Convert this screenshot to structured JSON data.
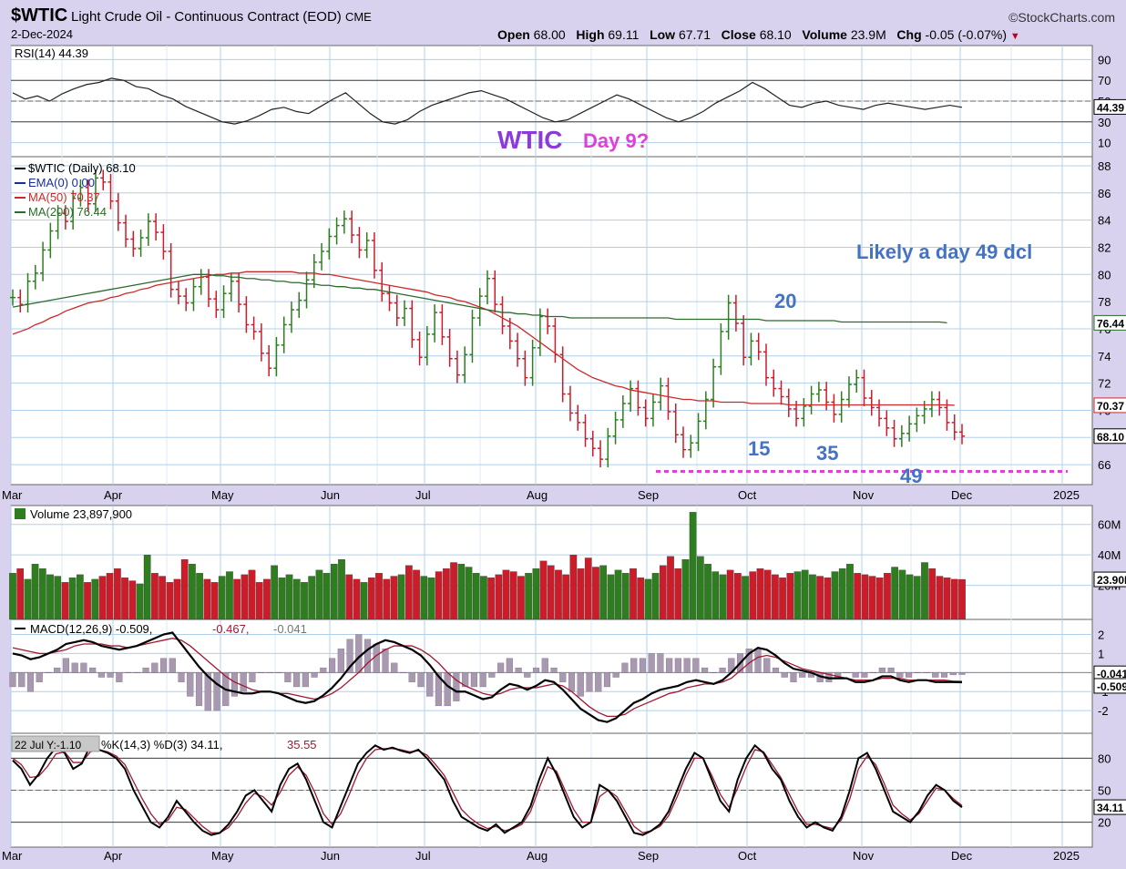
{
  "header": {
    "symbol": "$WTIC",
    "description": "Light Crude Oil - Continuous Contract (EOD)",
    "exchange": "CME",
    "date": "2-Dec-2024",
    "brand": "©StockCharts.com",
    "open_label": "Open",
    "open": "68.00",
    "high_label": "High",
    "high": "69.11",
    "low_label": "Low",
    "low": "67.71",
    "close_label": "Close",
    "close": "68.10",
    "volume_label": "Volume",
    "volume": "23.9M",
    "chg_label": "Chg",
    "chg": "-0.05 (-0.07%)"
  },
  "months": [
    "Mar",
    "Apr",
    "May",
    "Jun",
    "Jul",
    "Aug",
    "Sep",
    "Oct",
    "Nov",
    "Dec",
    "2025"
  ],
  "colors": {
    "up": "#2e7d1e",
    "down": "#cc1c2a",
    "ma50": "#cc2a2a",
    "ma200": "#2d6a2d",
    "annotation": "#4472c4",
    "title": "#8a3bd9",
    "day9": "#e040d8",
    "support": "#e040d8",
    "grid": "#b0d0ea"
  },
  "chart_data": [
    {
      "type": "line",
      "panel": "rsi",
      "legend": "RSI(14) 44.39",
      "ylim": [
        0,
        100
      ],
      "y_ticks": [
        90,
        70,
        50,
        30,
        10
      ],
      "last_value_label": "44.39",
      "values": [
        58,
        52,
        55,
        50,
        57,
        62,
        66,
        68,
        72,
        70,
        64,
        62,
        56,
        52,
        45,
        40,
        35,
        30,
        28,
        31,
        36,
        42,
        44,
        40,
        38,
        45,
        52,
        58,
        48,
        38,
        30,
        28,
        32,
        40,
        46,
        50,
        54,
        58,
        60,
        56,
        52,
        46,
        40,
        34,
        30,
        32,
        38,
        44,
        50,
        56,
        52,
        46,
        40,
        34,
        30,
        34,
        40,
        48,
        54,
        60,
        68,
        62,
        54,
        46,
        44,
        48,
        50,
        46,
        44,
        42,
        46,
        48,
        46,
        44,
        42,
        44,
        46,
        44
      ]
    },
    {
      "type": "bar",
      "panel": "price",
      "legend": [
        "$WTIC (Daily) 68.10",
        "EMA(0) 0.00",
        "MA(50) 70.37",
        "MA(200) 76.44"
      ],
      "ylim": [
        64.8,
        88.4
      ],
      "y_ticks": [
        88,
        86,
        84,
        82,
        80,
        78,
        76,
        74,
        72,
        70,
        68,
        66
      ],
      "last_labels": {
        "ma200": "76.44",
        "ma50": "70.37",
        "close": "68.10"
      },
      "close": [
        78.3,
        77.8,
        79.5,
        80.1,
        81.8,
        83.2,
        84.5,
        83.9,
        85.6,
        86.4,
        85.2,
        87.1,
        86.8,
        85.4,
        83.8,
        82.6,
        81.9,
        82.7,
        83.9,
        83.1,
        81.7,
        78.9,
        78.4,
        77.9,
        79.1,
        79.8,
        78.2,
        77.4,
        78.6,
        79.5,
        77.8,
        76.3,
        75.8,
        74.2,
        73.1,
        74.8,
        76.3,
        77.4,
        78.1,
        79.6,
        80.9,
        81.7,
        82.8,
        83.6,
        84.1,
        82.9,
        81.8,
        82.5,
        80.3,
        78.6,
        77.9,
        76.8,
        77.5,
        75.2,
        73.9,
        75.6,
        77.2,
        75.4,
        73.8,
        72.6,
        74.1,
        76.8,
        78.4,
        79.7,
        77.8,
        76.2,
        75.1,
        73.8,
        72.4,
        74.6,
        76.9,
        76.2,
        74.1,
        71.2,
        69.8,
        69.1,
        67.9,
        67.2,
        66.4,
        68.1,
        69.3,
        70.5,
        71.6,
        70.2,
        69.4,
        70.6,
        71.8,
        69.9,
        68.2,
        67.1,
        67.6,
        69.2,
        70.8,
        73.2,
        75.8,
        77.9,
        76.4,
        73.9,
        75.1,
        74.3,
        72.4,
        71.6,
        71.0,
        70.1,
        69.4,
        70.3,
        71.2,
        71.5,
        70.6,
        69.7,
        70.8,
        71.9,
        72.4,
        70.9,
        70.2,
        69.4,
        68.7,
        67.9,
        68.3,
        69.0,
        69.6,
        70.1,
        70.8,
        70.2,
        69.1,
        68.4,
        68.1
      ],
      "ma50": [
        75.6,
        75.8,
        76.0,
        76.3,
        76.5,
        76.8,
        77.0,
        77.3,
        77.5,
        77.7,
        77.9,
        78.0,
        78.1,
        78.3,
        78.4,
        78.6,
        78.7,
        78.9,
        79.0,
        79.2,
        79.3,
        79.4,
        79.5,
        79.6,
        79.7,
        79.8,
        79.9,
        80.0,
        80.0,
        80.1,
        80.1,
        80.2,
        80.2,
        80.2,
        80.2,
        80.2,
        80.2,
        80.2,
        80.1,
        80.1,
        80.1,
        80.0,
        80.0,
        79.9,
        79.8,
        79.7,
        79.6,
        79.5,
        79.4,
        79.3,
        79.2,
        79.1,
        79.0,
        78.9,
        78.8,
        78.7,
        78.5,
        78.4,
        78.3,
        78.1,
        78.0,
        77.8,
        77.6,
        77.4,
        77.1,
        76.8,
        76.5,
        76.2,
        75.8,
        75.4,
        75.0,
        74.6,
        74.2,
        73.8,
        73.4,
        73.0,
        72.7,
        72.4,
        72.2,
        72.0,
        71.8,
        71.7,
        71.5,
        71.4,
        71.3,
        71.2,
        71.1,
        71.0,
        70.9,
        70.8,
        70.8,
        70.7,
        70.7,
        70.7,
        70.6,
        70.6,
        70.6,
        70.6,
        70.5,
        70.5,
        70.5,
        70.5,
        70.5,
        70.4,
        70.4,
        70.4,
        70.4,
        70.4,
        70.4,
        70.4,
        70.4,
        70.4,
        70.4,
        70.4,
        70.4,
        70.4,
        70.4,
        70.4,
        70.4,
        70.4,
        70.4,
        70.4,
        70.4,
        70.4,
        70.4,
        70.37
      ],
      "ma200": [
        77.6,
        77.7,
        77.8,
        77.9,
        78.0,
        78.1,
        78.2,
        78.3,
        78.4,
        78.5,
        78.6,
        78.7,
        78.8,
        78.9,
        79.0,
        79.1,
        79.2,
        79.3,
        79.4,
        79.5,
        79.6,
        79.7,
        79.8,
        79.9,
        80.0,
        80.0,
        80.0,
        79.9,
        79.9,
        79.8,
        79.8,
        79.7,
        79.7,
        79.6,
        79.6,
        79.5,
        79.5,
        79.4,
        79.4,
        79.3,
        79.3,
        79.2,
        79.2,
        79.1,
        79.1,
        79.0,
        79.0,
        78.9,
        78.9,
        78.8,
        78.7,
        78.6,
        78.5,
        78.4,
        78.3,
        78.2,
        78.1,
        78.0,
        77.9,
        77.8,
        77.7,
        77.6,
        77.5,
        77.4,
        77.3,
        77.2,
        77.2,
        77.1,
        77.1,
        77.0,
        77.0,
        76.9,
        76.9,
        76.9,
        76.8,
        76.8,
        76.8,
        76.8,
        76.8,
        76.8,
        76.8,
        76.8,
        76.8,
        76.8,
        76.8,
        76.8,
        76.8,
        76.8,
        76.7,
        76.7,
        76.7,
        76.7,
        76.7,
        76.7,
        76.7,
        76.7,
        76.7,
        76.7,
        76.7,
        76.7,
        76.6,
        76.6,
        76.6,
        76.6,
        76.6,
        76.6,
        76.6,
        76.6,
        76.6,
        76.6,
        76.5,
        76.5,
        76.5,
        76.5,
        76.5,
        76.5,
        76.5,
        76.5,
        76.5,
        76.5,
        76.5,
        76.5,
        76.5,
        76.5,
        76.44
      ],
      "support_level": 65.5
    },
    {
      "type": "bar",
      "panel": "volume",
      "legend": "Volume 23,897,900",
      "y_tick_labels": [
        "60M",
        "40M",
        "20M"
      ],
      "y_ticks": [
        60,
        40,
        20
      ],
      "ylim": [
        0,
        70
      ],
      "last_value_label": "23.90M",
      "values_millions": [
        28,
        31,
        24,
        34,
        31,
        27,
        26,
        22,
        25,
        27,
        22,
        24,
        26,
        28,
        31,
        25,
        23,
        21,
        40,
        28,
        26,
        22,
        24,
        37,
        34,
        28,
        24,
        22,
        26,
        29,
        24,
        27,
        30,
        22,
        24,
        33,
        25,
        27,
        24,
        22,
        26,
        30,
        28,
        34,
        37,
        27,
        24,
        22,
        25,
        28,
        24,
        26,
        27,
        33,
        30,
        26,
        25,
        29,
        31,
        35,
        34,
        32,
        28,
        26,
        25,
        27,
        30,
        29,
        26,
        28,
        31,
        36,
        33,
        30,
        27,
        40,
        31,
        38,
        32,
        33,
        27,
        30,
        28,
        31,
        25,
        24,
        28,
        33,
        39,
        31,
        37,
        68,
        39,
        34,
        29,
        27,
        30,
        28,
        26,
        29,
        31,
        30,
        27,
        25,
        28,
        29,
        30,
        27,
        26,
        25,
        29,
        31,
        34,
        28,
        27,
        26,
        25,
        28,
        32,
        30,
        27,
        26,
        35,
        31,
        26,
        25,
        24,
        23.9
      ]
    },
    {
      "type": "line",
      "panel": "macd",
      "legend": [
        "MACD(12,26,9) -0.509,",
        "-0.467,",
        "-0.041"
      ],
      "ylim": [
        -3,
        2.6
      ],
      "y_ticks": [
        2,
        1,
        0,
        -1,
        -2
      ],
      "last_labels": [
        "-0.041",
        "-0.509"
      ],
      "macd": [
        1.0,
        0.9,
        0.7,
        0.8,
        1.0,
        1.2,
        1.5,
        1.6,
        1.7,
        1.6,
        1.4,
        1.3,
        1.2,
        1.3,
        1.4,
        1.6,
        1.8,
        2.0,
        2.1,
        1.5,
        0.9,
        0.3,
        -0.2,
        -0.6,
        -0.9,
        -1.0,
        -1.1,
        -1.1,
        -1.0,
        -1.0,
        -1.1,
        -1.3,
        -1.5,
        -1.6,
        -1.5,
        -1.2,
        -0.8,
        -0.3,
        0.3,
        0.8,
        1.2,
        1.5,
        1.7,
        1.6,
        1.4,
        1.2,
        0.9,
        0.4,
        -0.2,
        -0.7,
        -1.0,
        -1.0,
        -1.2,
        -1.4,
        -1.3,
        -0.9,
        -0.6,
        -0.7,
        -0.9,
        -0.7,
        -0.4,
        -0.5,
        -0.9,
        -1.4,
        -1.9,
        -2.2,
        -2.5,
        -2.6,
        -2.4,
        -2.0,
        -1.6,
        -1.4,
        -1.1,
        -0.9,
        -0.8,
        -0.7,
        -0.5,
        -0.4,
        -0.5,
        -0.6,
        -0.4,
        0.0,
        0.5,
        1.0,
        1.3,
        1.2,
        0.9,
        0.5,
        0.2,
        0.1,
        0.0,
        -0.2,
        -0.3,
        -0.3,
        -0.3,
        -0.5,
        -0.5,
        -0.4,
        -0.2,
        -0.2,
        -0.4,
        -0.5,
        -0.4,
        -0.4,
        -0.5,
        -0.5,
        -0.5,
        -0.51
      ],
      "signal": [
        1.3,
        1.2,
        1.1,
        1.0,
        1.0,
        1.1,
        1.2,
        1.4,
        1.5,
        1.5,
        1.5,
        1.4,
        1.4,
        1.3,
        1.4,
        1.5,
        1.6,
        1.7,
        1.8,
        1.7,
        1.4,
        1.0,
        0.6,
        0.2,
        -0.2,
        -0.5,
        -0.7,
        -0.9,
        -1.0,
        -1.0,
        -1.1,
        -1.1,
        -1.2,
        -1.3,
        -1.4,
        -1.3,
        -1.1,
        -0.8,
        -0.4,
        0.0,
        0.5,
        0.9,
        1.2,
        1.4,
        1.4,
        1.4,
        1.2,
        0.9,
        0.5,
        0.0,
        -0.4,
        -0.7,
        -0.9,
        -1.1,
        -1.2,
        -1.1,
        -0.9,
        -0.8,
        -0.8,
        -0.8,
        -0.7,
        -0.6,
        -0.7,
        -1.0,
        -1.4,
        -1.8,
        -2.1,
        -2.3,
        -2.3,
        -2.2,
        -1.9,
        -1.7,
        -1.5,
        -1.3,
        -1.1,
        -1.0,
        -0.8,
        -0.7,
        -0.6,
        -0.6,
        -0.5,
        -0.3,
        0.1,
        0.5,
        0.8,
        0.9,
        0.8,
        0.6,
        0.4,
        0.2,
        0.1,
        0.0,
        -0.1,
        -0.2,
        -0.3,
        -0.4,
        -0.4,
        -0.4,
        -0.3,
        -0.3,
        -0.3,
        -0.4,
        -0.4,
        -0.4,
        -0.4,
        -0.4,
        -0.45,
        -0.467
      ]
    },
    {
      "type": "line",
      "panel": "stochastic",
      "tooltip": "22 Jul Y:-1.10",
      "legend": [
        "%K(14,3) %D(3) 34.11,",
        "35.55"
      ],
      "ylim": [
        0,
        100
      ],
      "y_ticks": [
        80,
        50,
        20
      ],
      "last_value_label": "34.11",
      "k": [
        78,
        70,
        55,
        65,
        80,
        90,
        85,
        70,
        75,
        92,
        88,
        85,
        80,
        70,
        50,
        35,
        20,
        15,
        25,
        40,
        30,
        20,
        12,
        8,
        10,
        18,
        30,
        45,
        50,
        40,
        30,
        55,
        70,
        75,
        60,
        40,
        20,
        15,
        35,
        55,
        75,
        85,
        92,
        88,
        90,
        87,
        85,
        88,
        80,
        70,
        60,
        40,
        25,
        20,
        15,
        12,
        18,
        10,
        15,
        20,
        35,
        60,
        80,
        65,
        45,
        25,
        15,
        20,
        55,
        50,
        40,
        25,
        10,
        8,
        12,
        18,
        30,
        50,
        70,
        85,
        80,
        60,
        40,
        30,
        60,
        80,
        92,
        85,
        70,
        60,
        40,
        25,
        15,
        20,
        15,
        12,
        25,
        50,
        80,
        85,
        70,
        50,
        30,
        25,
        20,
        30,
        45,
        55,
        50,
        40,
        34
      ],
      "d": [
        80,
        74,
        62,
        63,
        72,
        84,
        86,
        76,
        76,
        86,
        88,
        86,
        82,
        74,
        58,
        42,
        28,
        18,
        22,
        34,
        32,
        24,
        16,
        10,
        10,
        15,
        25,
        38,
        47,
        44,
        36,
        48,
        64,
        72,
        64,
        48,
        28,
        18,
        28,
        46,
        66,
        80,
        88,
        89,
        89,
        88,
        86,
        87,
        83,
        74,
        64,
        48,
        32,
        24,
        18,
        14,
        16,
        12,
        14,
        18,
        30,
        52,
        72,
        68,
        50,
        32,
        20,
        20,
        44,
        50,
        44,
        30,
        16,
        10,
        12,
        16,
        26,
        44,
        64,
        80,
        80,
        64,
        46,
        34,
        52,
        72,
        88,
        86,
        74,
        62,
        46,
        30,
        18,
        18,
        16,
        14,
        22,
        42,
        70,
        82,
        74,
        56,
        36,
        28,
        22,
        28,
        40,
        52,
        50,
        42,
        35.55
      ]
    }
  ],
  "annotations": {
    "title": "WTIC",
    "day9": "Day 9?",
    "likely": "Likely a day 49 dcl",
    "n20": "20",
    "n15": "15",
    "n35": "35",
    "n49": "49"
  }
}
